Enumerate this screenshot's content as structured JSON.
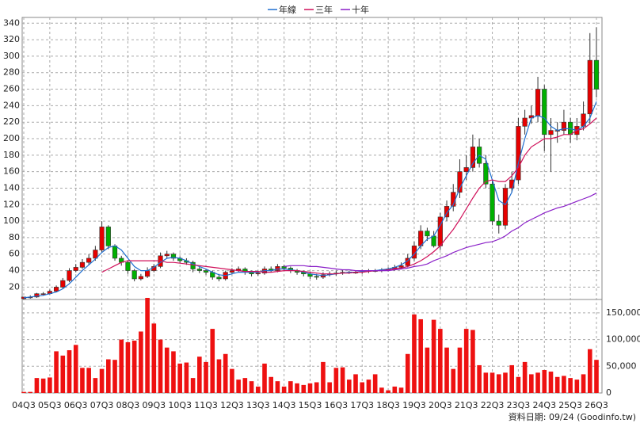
{
  "chart_data": {
    "type": "candlestick",
    "categories": [
      "04Q3",
      null,
      null,
      null,
      "05Q3",
      null,
      null,
      null,
      "06Q3",
      null,
      null,
      null,
      "07Q3",
      null,
      null,
      null,
      "08Q3",
      null,
      null,
      null,
      "09Q3",
      null,
      null,
      null,
      "10Q3",
      null,
      null,
      null,
      "11Q3",
      null,
      null,
      null,
      "12Q3",
      null,
      null,
      null,
      "13Q3",
      null,
      null,
      null,
      "14Q3",
      null,
      null,
      null,
      "15Q3",
      null,
      null,
      null,
      "16Q3",
      null,
      null,
      null,
      "17Q3",
      null,
      null,
      null,
      "18Q3",
      null,
      null,
      null,
      "19Q3",
      null,
      null,
      null,
      "20Q3",
      null,
      null,
      null,
      "21Q3",
      null,
      null,
      null,
      "22Q3",
      null,
      null,
      null,
      "23Q3",
      null,
      null,
      null,
      "24Q3",
      null,
      null,
      null,
      "25Q3",
      null,
      null,
      null,
      "26Q3"
    ],
    "open": [
      6,
      8,
      8,
      12,
      12,
      15,
      20,
      28,
      40,
      44,
      50,
      55,
      65,
      93,
      70,
      55,
      50,
      40,
      30,
      33,
      40,
      45,
      58,
      60,
      55,
      52,
      50,
      42,
      40,
      38,
      32,
      30,
      38,
      40,
      42,
      38,
      36,
      37,
      42,
      40,
      45,
      43,
      40,
      38,
      36,
      33,
      32,
      35,
      36,
      37,
      38,
      38,
      38,
      39,
      40,
      40,
      41,
      42,
      44,
      46,
      55,
      70,
      88,
      82,
      70,
      105,
      118,
      135,
      160,
      165,
      190,
      170,
      145,
      100,
      95,
      140,
      150,
      215,
      225,
      228,
      260,
      205,
      210,
      210,
      220,
      205,
      215,
      230,
      295
    ],
    "high": [
      8,
      10,
      13,
      14,
      17,
      22,
      31,
      43,
      48,
      54,
      60,
      70,
      100,
      95,
      72,
      58,
      52,
      42,
      36,
      44,
      48,
      62,
      64,
      62,
      57,
      55,
      52,
      45,
      42,
      40,
      36,
      40,
      43,
      45,
      44,
      40,
      40,
      45,
      45,
      48,
      47,
      45,
      42,
      40,
      38,
      36,
      38,
      39,
      40,
      41,
      40,
      40,
      41,
      42,
      42,
      43,
      44,
      47,
      50,
      60,
      75,
      95,
      92,
      88,
      110,
      125,
      145,
      175,
      180,
      205,
      200,
      180,
      150,
      108,
      145,
      160,
      225,
      235,
      240,
      275,
      265,
      225,
      220,
      235,
      225,
      225,
      245,
      328,
      335
    ],
    "low": [
      5,
      6,
      7,
      10,
      11,
      14,
      18,
      26,
      38,
      42,
      47,
      52,
      62,
      66,
      52,
      46,
      36,
      27,
      28,
      31,
      38,
      43,
      55,
      52,
      49,
      47,
      38,
      37,
      35,
      29,
      27,
      28,
      36,
      38,
      35,
      33,
      34,
      35,
      38,
      38,
      40,
      37,
      35,
      33,
      30,
      29,
      30,
      33,
      34,
      35,
      36,
      36,
      36,
      37,
      38,
      38,
      39,
      40,
      42,
      44,
      52,
      66,
      76,
      68,
      65,
      100,
      112,
      128,
      150,
      160,
      165,
      140,
      95,
      85,
      90,
      135,
      145,
      205,
      218,
      220,
      185,
      160,
      195,
      205,
      195,
      198,
      210,
      218,
      250
    ],
    "close": [
      8,
      8,
      12,
      12,
      15,
      20,
      28,
      40,
      44,
      50,
      55,
      65,
      93,
      70,
      55,
      50,
      40,
      30,
      33,
      40,
      45,
      58,
      60,
      55,
      52,
      50,
      42,
      40,
      38,
      32,
      30,
      38,
      40,
      42,
      38,
      36,
      37,
      42,
      40,
      45,
      43,
      40,
      38,
      36,
      33,
      32,
      35,
      36,
      37,
      38,
      38,
      38,
      39,
      40,
      40,
      41,
      42,
      44,
      46,
      55,
      70,
      88,
      82,
      70,
      105,
      118,
      135,
      160,
      165,
      190,
      170,
      145,
      100,
      95,
      140,
      150,
      215,
      225,
      228,
      260,
      205,
      210,
      210,
      220,
      205,
      215,
      230,
      295,
      260
    ],
    "volume": [
      2000,
      2000,
      28000,
      27000,
      29000,
      78000,
      70000,
      80000,
      90000,
      47000,
      47000,
      28000,
      45000,
      63000,
      62000,
      100000,
      95000,
      98000,
      115000,
      178000,
      130000,
      100000,
      85000,
      78000,
      55000,
      57000,
      28000,
      68000,
      58000,
      120000,
      63000,
      73000,
      45000,
      25000,
      28000,
      22000,
      12000,
      55000,
      30000,
      22000,
      12000,
      22000,
      18000,
      15000,
      18000,
      20000,
      58000,
      20000,
      47000,
      48000,
      25000,
      35000,
      20000,
      25000,
      35000,
      10000,
      5000,
      12000,
      10000,
      73000,
      147000,
      138000,
      85000,
      137000,
      120000,
      85000,
      45000,
      85000,
      120000,
      118000,
      52000,
      38000,
      38000,
      35000,
      38000,
      52000,
      30000,
      58000,
      35000,
      38000,
      43000,
      40000,
      30000,
      32000,
      28000,
      25000,
      35000,
      82000,
      62000
    ],
    "up_color": "#e60000",
    "down_color": "#00b000",
    "volume_color": "#ee1111",
    "series": [
      {
        "name": "年線",
        "color": "#1f6fd0",
        "values": [
          7,
          8,
          9,
          10,
          12,
          14,
          18,
          24,
          32,
          40,
          47,
          54,
          62,
          68,
          70,
          65,
          55,
          45,
          40,
          40,
          44,
          50,
          55,
          56,
          55,
          52,
          48,
          45,
          42,
          38,
          35,
          34,
          36,
          38,
          38,
          38,
          38,
          40,
          40,
          42,
          42,
          41,
          40,
          38,
          36,
          35,
          34,
          35,
          36,
          37,
          38,
          38,
          39,
          40,
          40,
          41,
          42,
          44,
          47,
          52,
          60,
          70,
          78,
          82,
          95,
          110,
          120,
          140,
          155,
          170,
          180,
          175,
          150,
          125,
          120,
          135,
          170,
          200,
          225,
          228,
          225,
          215,
          210,
          212,
          212,
          210,
          215,
          225,
          245
        ]
      },
      {
        "name": "三年",
        "color": "#d0105a",
        "values": [
          null,
          null,
          null,
          null,
          null,
          null,
          null,
          null,
          null,
          null,
          null,
          null,
          38,
          42,
          46,
          50,
          52,
          52,
          52,
          52,
          52,
          52,
          50,
          50,
          49,
          48,
          47,
          46,
          45,
          44,
          43,
          42,
          41,
          40,
          39,
          39,
          39,
          38,
          38,
          39,
          40,
          40,
          40,
          39,
          38,
          37,
          36,
          36,
          36,
          37,
          37,
          38,
          38,
          39,
          40,
          40,
          41,
          42,
          43,
          45,
          48,
          52,
          57,
          63,
          70,
          80,
          90,
          102,
          115,
          128,
          140,
          148,
          150,
          148,
          148,
          155,
          165,
          180,
          190,
          195,
          200,
          200,
          202,
          205,
          205,
          210,
          212,
          218,
          225
        ]
      },
      {
        "name": "十年",
        "color": "#8a1fc8",
        "values": [
          null,
          null,
          null,
          null,
          null,
          null,
          null,
          null,
          null,
          null,
          null,
          null,
          null,
          null,
          null,
          null,
          null,
          null,
          null,
          null,
          null,
          null,
          null,
          null,
          null,
          null,
          null,
          null,
          null,
          null,
          null,
          null,
          null,
          null,
          null,
          null,
          null,
          null,
          null,
          null,
          45,
          46,
          46,
          46,
          45,
          45,
          44,
          43,
          42,
          41,
          41,
          40,
          40,
          40,
          40,
          40,
          40,
          41,
          42,
          43,
          45,
          46,
          48,
          52,
          55,
          58,
          62,
          65,
          68,
          70,
          72,
          74,
          75,
          78,
          82,
          88,
          92,
          98,
          102,
          106,
          110,
          113,
          116,
          118,
          121,
          124,
          127,
          130,
          134
        ]
      }
    ],
    "ylim": [
      5,
      347
    ],
    "yticks": [
      20,
      40,
      60,
      80,
      100,
      120,
      140,
      160,
      180,
      200,
      220,
      240,
      260,
      280,
      300,
      320,
      340
    ],
    "y2lim": [
      0,
      175000
    ],
    "y2ticks": [
      0,
      {
        "value": 50000,
        "label": "50,000"
      },
      {
        "value": 100000,
        "label": "100,000"
      },
      {
        "value": 150000,
        "label": "150,000"
      }
    ],
    "grid": true,
    "source": "資料日期: 09/24 (Goodinfo.tw)"
  }
}
